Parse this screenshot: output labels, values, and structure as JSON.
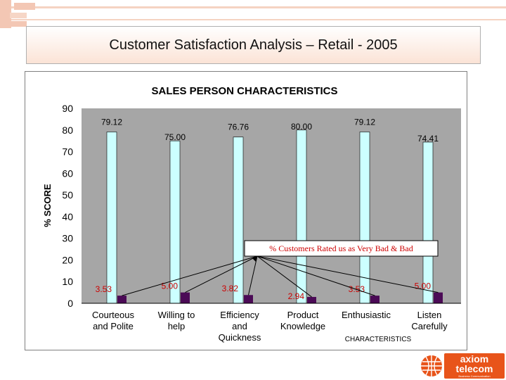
{
  "slide": {
    "title": "Customer Satisfaction Analysis – Retail - 2005"
  },
  "logo": {
    "line1": "axiom",
    "line2": "telecom",
    "tagline": "Business Communication"
  },
  "colors": {
    "plot_bg": "#a6a6a6",
    "bar_main": "#ccffff",
    "bar_low": "#4b0a56",
    "low_label": "#cc0000",
    "accent": "#e8541a"
  },
  "chart_data": {
    "type": "bar",
    "title": "SALES PERSON CHARACTERISTICS",
    "xlabel": "CHARACTERISTICS",
    "ylabel": "% SCORE",
    "ylim": [
      0,
      90
    ],
    "yticks": [
      "0",
      "10",
      "20",
      "30",
      "40",
      "50",
      "60",
      "70",
      "80",
      "90"
    ],
    "grid": false,
    "categories": [
      [
        "Courteous",
        "and Polite"
      ],
      [
        "Willing to",
        "help"
      ],
      [
        "Efficiency",
        "and",
        "Quickness"
      ],
      [
        "Product",
        "Knowledge"
      ],
      [
        "Enthusiastic"
      ],
      [
        "Listen",
        "Carefully"
      ]
    ],
    "series": [
      {
        "values": [
          79.12,
          75.0,
          76.76,
          80.0,
          79.12,
          74.41
        ],
        "labels": [
          "79.12",
          "75.00",
          "76.76",
          "80.00",
          "79.12",
          "74.41"
        ]
      },
      {
        "values": [
          3.53,
          5.0,
          3.82,
          2.94,
          3.53,
          5.0
        ],
        "labels": [
          "3.53",
          "5.00",
          "3.82",
          "2.94",
          "3.53",
          "5.00"
        ]
      }
    ],
    "annotation": "% Customers Rated us as Very Bad & Bad"
  }
}
